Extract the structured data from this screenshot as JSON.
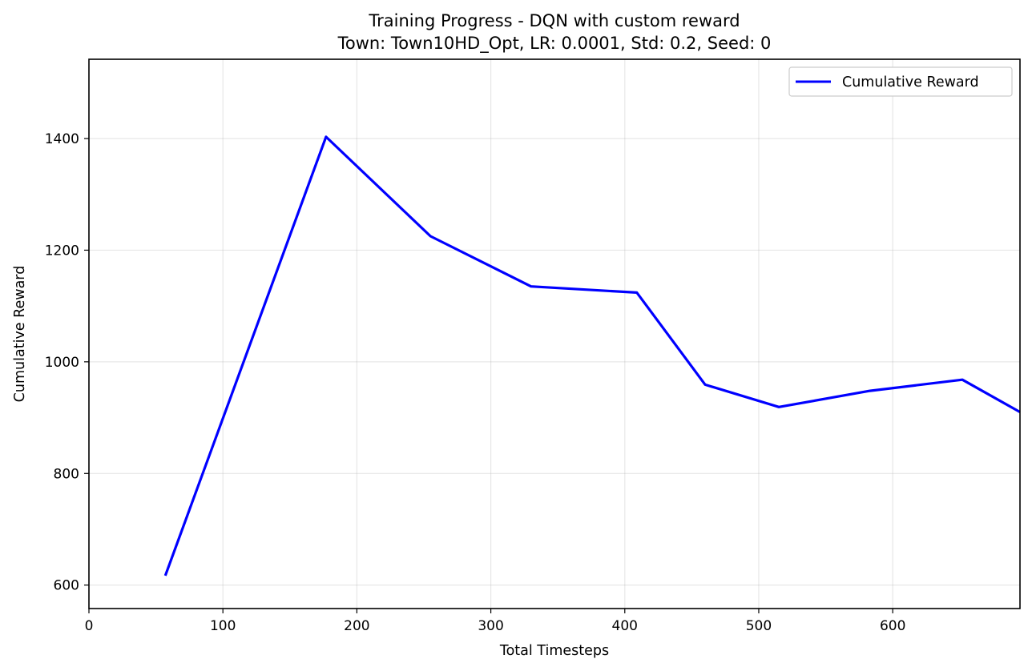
{
  "chart_data": {
    "type": "line",
    "title": "Training Progress - DQN with custom reward",
    "subtitle": "Town: Town10HD_Opt, LR: 0.0001, Std: 0.2, Seed: 0",
    "xlabel": "Total Timesteps",
    "ylabel": "Cumulative Reward",
    "xlim": [
      0,
      695
    ],
    "ylim": [
      558,
      1542
    ],
    "xticks": [
      0,
      100,
      200,
      300,
      400,
      500,
      600
    ],
    "yticks": [
      600,
      800,
      1000,
      1200,
      1400
    ],
    "grid": true,
    "legend_position": "top-right",
    "series": [
      {
        "name": "Cumulative Reward",
        "color": "#0000ff",
        "x": [
          57,
          177,
          255,
          330,
          409,
          460,
          515,
          583,
          652,
          695
        ],
        "y": [
          617,
          1403,
          1225,
          1135,
          1124,
          959,
          919,
          948,
          968,
          910
        ]
      }
    ]
  }
}
